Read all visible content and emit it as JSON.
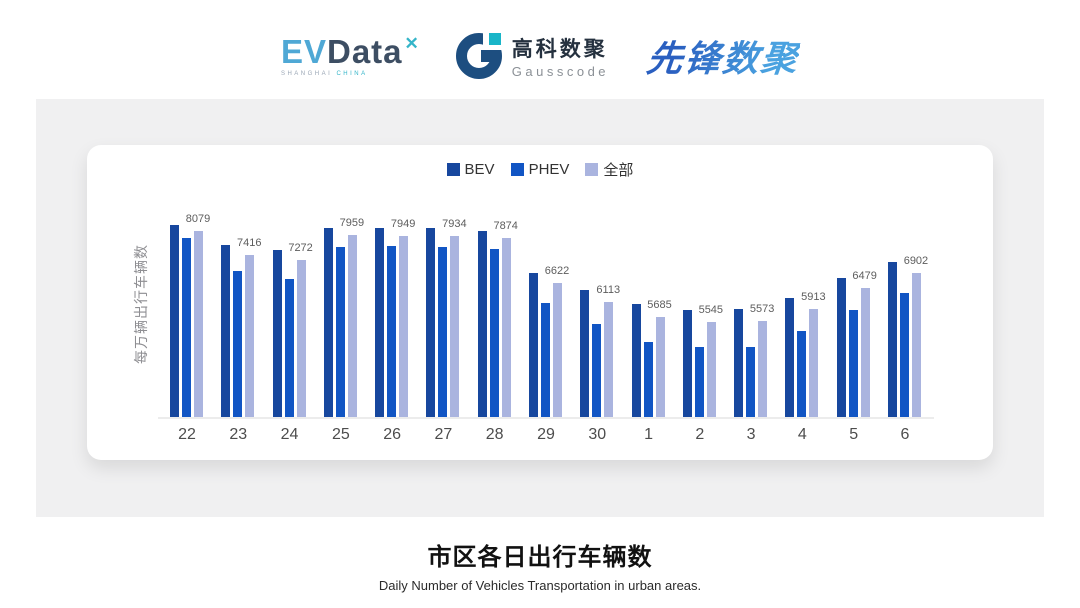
{
  "header": {
    "evdata": {
      "ev": "EV",
      "data": "Data",
      "mark": "✕",
      "shanghai": "SHANGHAI",
      "china": "CHINA"
    },
    "gausscode": {
      "cn": "高科数聚",
      "en": "Gausscode"
    },
    "xianfeng": {
      "text": "先锋数聚"
    }
  },
  "colors": {
    "panel_bg": "#F0F0F1",
    "card_bg": "#FFFFFF",
    "bev": "#17479E",
    "phev": "#1155C4",
    "all": "#AAB4DF",
    "axis_line": "#ECECEC"
  },
  "chart_data": {
    "type": "bar",
    "title": "市区各日出行车辆数",
    "subtitle": "Daily Number of Vehicles Transportation in urban areas.",
    "xlabel": "",
    "ylabel": "每万辆出行车辆数",
    "categories": [
      "22",
      "23",
      "24",
      "25",
      "26",
      "27",
      "28",
      "29",
      "30",
      "1",
      "2",
      "3",
      "4",
      "5",
      "6"
    ],
    "series": [
      {
        "name": "BEV",
        "color": "#17479E",
        "values": [
          8240,
          7690,
          7560,
          8150,
          8160,
          8150,
          8080,
          6920,
          6430,
          6040,
          5880,
          5900,
          6200,
          6780,
          7210
        ]
      },
      {
        "name": "PHEV",
        "color": "#1155C4",
        "values": [
          7870,
          6960,
          6730,
          7640,
          7650,
          7620,
          7570,
          6080,
          5480,
          4990,
          4860,
          4840,
          5290,
          5890,
          6340
        ]
      },
      {
        "name": "全部",
        "color": "#AAB4DF",
        "values": [
          8079,
          7416,
          7272,
          7959,
          7949,
          7934,
          7874,
          6622,
          6113,
          5685,
          5545,
          5573,
          5913,
          6479,
          6902
        ]
      }
    ],
    "data_labels": [
      8079,
      7416,
      7272,
      7959,
      7949,
      7934,
      7874,
      6622,
      6113,
      5685,
      5545,
      5573,
      5913,
      6479,
      6902
    ],
    "data_label_series": "全部",
    "axis": {
      "value_min": 2900,
      "value_max": 9300,
      "gridlines": false,
      "y_tick_labels": false,
      "legend_position": "top"
    }
  }
}
